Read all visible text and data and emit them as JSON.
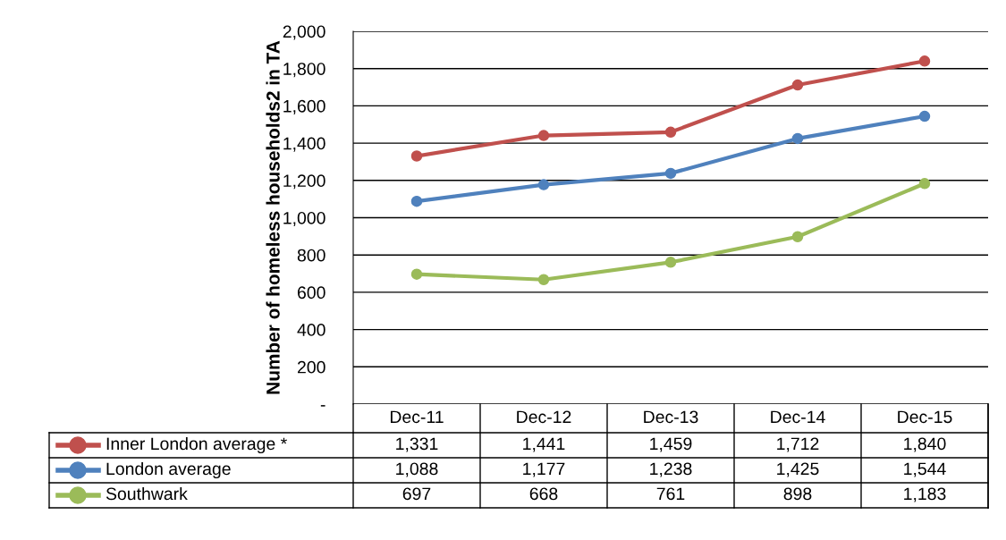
{
  "chart_data": {
    "type": "line",
    "ylabel": "Number of homeless households2 in TA",
    "categories": [
      "Dec-11",
      "Dec-12",
      "Dec-13",
      "Dec-14",
      "Dec-15"
    ],
    "series": [
      {
        "name": "Inner London average *",
        "color": "#c0504d",
        "values": [
          1331,
          1441,
          1459,
          1712,
          1840
        ],
        "value_labels": [
          "1,331",
          "1,441",
          "1,459",
          "1,712",
          "1,840"
        ]
      },
      {
        "name": "London average",
        "color": "#4f81bd",
        "values": [
          1088,
          1177,
          1238,
          1425,
          1544
        ],
        "value_labels": [
          "1,088",
          "1,177",
          "1,238",
          "1,425",
          "1,544"
        ]
      },
      {
        "name": "Southwark",
        "color": "#9bbb59",
        "values": [
          697,
          668,
          761,
          898,
          1183
        ],
        "value_labels": [
          "697",
          "668",
          "761",
          "898",
          "1,183"
        ]
      }
    ],
    "ylim": [
      0,
      2000
    ],
    "yticks": [
      {
        "value": 0,
        "label": "-"
      },
      200,
      400,
      600,
      800,
      {
        "value": 1000,
        "label": "1,000"
      },
      {
        "value": 1200,
        "label": "1,200"
      },
      {
        "value": 1400,
        "label": "1,400"
      },
      {
        "value": 1600,
        "label": "1,600"
      },
      {
        "value": 1800,
        "label": "1,800"
      },
      {
        "value": 2000,
        "label": "2,000"
      }
    ],
    "grid": "y",
    "marker": "circle",
    "line_style": "solid",
    "legend": "bottom"
  }
}
